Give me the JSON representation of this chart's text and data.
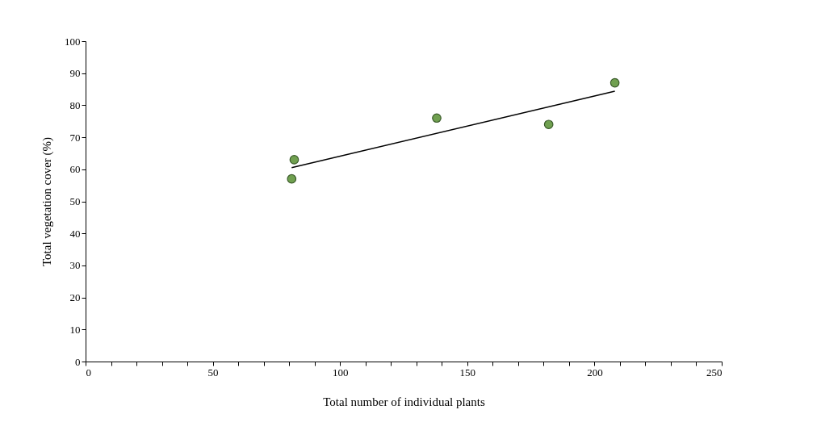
{
  "chart_data": {
    "type": "scatter",
    "xlabel": "Total number of individual plants",
    "ylabel": "Total vegetation cover (%)",
    "series": [
      {
        "color": "#70a050",
        "marker": "circle",
        "x": [
          81,
          82,
          138,
          182,
          208
        ],
        "values": [
          57,
          63,
          76,
          74,
          87
        ]
      },
      {
        "type": "line",
        "color": "#000000",
        "x": [
          81,
          208
        ],
        "values": [
          60.5,
          84.4
        ]
      }
    ],
    "xlim": [
      0,
      250
    ],
    "ylim": [
      0,
      100
    ],
    "xticks": [
      0,
      {
        "value": 10,
        "label": null
      },
      {
        "value": 20,
        "label": null
      },
      {
        "value": 30,
        "label": null
      },
      {
        "value": 40,
        "label": null
      },
      50,
      {
        "value": 60,
        "label": null
      },
      {
        "value": 70,
        "label": null
      },
      {
        "value": 80,
        "label": null
      },
      {
        "value": 90,
        "label": null
      },
      100,
      {
        "value": 110,
        "label": null
      },
      {
        "value": 120,
        "label": null
      },
      {
        "value": 130,
        "label": null
      },
      {
        "value": 140,
        "label": null
      },
      150,
      {
        "value": 160,
        "label": null
      },
      {
        "value": 170,
        "label": null
      },
      {
        "value": 180,
        "label": null
      },
      {
        "value": 190,
        "label": null
      },
      200,
      {
        "value": 210,
        "label": null
      },
      {
        "value": 220,
        "label": null
      },
      {
        "value": 230,
        "label": null
      },
      {
        "value": 240,
        "label": null
      },
      250
    ],
    "yticks": [
      0,
      10,
      20,
      30,
      40,
      50,
      60,
      70,
      80,
      90,
      100
    ],
    "grid": false
  }
}
